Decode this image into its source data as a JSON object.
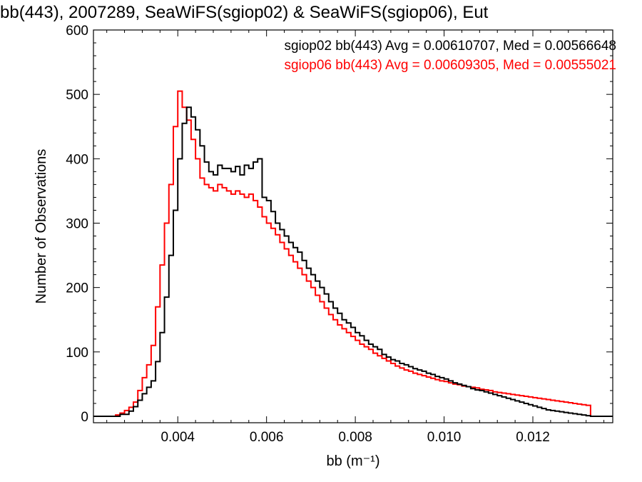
{
  "chart_data": {
    "type": "line",
    "title": "bb(443), 2007289, SeaWiFS(sgiop02) & SeaWiFS(sgiop06), Eut",
    "xlabel": "bb (m⁻¹)",
    "ylabel": "Number of Observations",
    "xlim": [
      0.0021,
      0.0138
    ],
    "ylim": [
      -10,
      600
    ],
    "xticks": [
      0.004,
      0.006,
      0.008,
      0.01,
      0.012
    ],
    "xtick_labels": [
      "0.004",
      "0.006",
      "0.008",
      "0.010",
      "0.012"
    ],
    "yticks": [
      0,
      100,
      200,
      300,
      400,
      500,
      600
    ],
    "ytick_labels": [
      "0",
      "100",
      "200",
      "300",
      "400",
      "500",
      "600"
    ],
    "grid": false,
    "legend_position": "top-right",
    "series": [
      {
        "name": "sgiop02 bb(443) Avg = 0.00610707, Med = 0.00566648",
        "color": "#000000",
        "step": "histogram",
        "points": [
          [
            0.0025,
            0
          ],
          [
            0.0027,
            3
          ],
          [
            0.0029,
            8
          ],
          [
            0.003,
            15
          ],
          [
            0.0031,
            25
          ],
          [
            0.0032,
            35
          ],
          [
            0.0033,
            45
          ],
          [
            0.0034,
            55
          ],
          [
            0.0035,
            85
          ],
          [
            0.0036,
            130
          ],
          [
            0.0037,
            185
          ],
          [
            0.0038,
            250
          ],
          [
            0.0039,
            320
          ],
          [
            0.004,
            400
          ],
          [
            0.0041,
            455
          ],
          [
            0.0042,
            480
          ],
          [
            0.0043,
            465
          ],
          [
            0.0044,
            445
          ],
          [
            0.0045,
            420
          ],
          [
            0.0046,
            395
          ],
          [
            0.0047,
            380
          ],
          [
            0.0048,
            375
          ],
          [
            0.0049,
            390
          ],
          [
            0.005,
            385
          ],
          [
            0.0051,
            385
          ],
          [
            0.0052,
            380
          ],
          [
            0.0053,
            388
          ],
          [
            0.0054,
            375
          ],
          [
            0.0055,
            390
          ],
          [
            0.0056,
            385
          ],
          [
            0.0057,
            395
          ],
          [
            0.0058,
            400
          ],
          [
            0.0059,
            340
          ],
          [
            0.006,
            335
          ],
          [
            0.0061,
            318
          ],
          [
            0.0062,
            300
          ],
          [
            0.0063,
            290
          ],
          [
            0.0064,
            280
          ],
          [
            0.0065,
            270
          ],
          [
            0.0066,
            262
          ],
          [
            0.0067,
            255
          ],
          [
            0.0068,
            242
          ],
          [
            0.0069,
            230
          ],
          [
            0.007,
            220
          ],
          [
            0.0071,
            210
          ],
          [
            0.0072,
            200
          ],
          [
            0.0073,
            190
          ],
          [
            0.0074,
            178
          ],
          [
            0.0075,
            168
          ],
          [
            0.0076,
            160
          ],
          [
            0.0077,
            150
          ],
          [
            0.0078,
            145
          ],
          [
            0.0079,
            138
          ],
          [
            0.008,
            130
          ],
          [
            0.0081,
            125
          ],
          [
            0.0082,
            118
          ],
          [
            0.0083,
            112
          ],
          [
            0.0084,
            108
          ],
          [
            0.0085,
            104
          ],
          [
            0.0086,
            96
          ],
          [
            0.0087,
            92
          ],
          [
            0.0088,
            88
          ],
          [
            0.0089,
            86
          ],
          [
            0.009,
            82
          ],
          [
            0.0091,
            80
          ],
          [
            0.0092,
            77
          ],
          [
            0.0093,
            74
          ],
          [
            0.0094,
            72
          ],
          [
            0.0095,
            70
          ],
          [
            0.0096,
            67
          ],
          [
            0.0097,
            65
          ],
          [
            0.0098,
            62
          ],
          [
            0.0099,
            60
          ],
          [
            0.01,
            58
          ],
          [
            0.0101,
            55
          ],
          [
            0.0102,
            52
          ],
          [
            0.0103,
            50
          ],
          [
            0.0104,
            48
          ],
          [
            0.0105,
            46
          ],
          [
            0.0106,
            43
          ],
          [
            0.0107,
            41
          ],
          [
            0.0108,
            40
          ],
          [
            0.0109,
            38
          ],
          [
            0.011,
            36
          ],
          [
            0.0111,
            34
          ],
          [
            0.0112,
            32
          ],
          [
            0.0113,
            30
          ],
          [
            0.0114,
            28
          ],
          [
            0.0115,
            26
          ],
          [
            0.0116,
            24
          ],
          [
            0.0117,
            22
          ],
          [
            0.0118,
            20
          ],
          [
            0.0119,
            18
          ],
          [
            0.012,
            16
          ],
          [
            0.0121,
            14
          ],
          [
            0.0122,
            12
          ],
          [
            0.0123,
            10
          ],
          [
            0.0124,
            9
          ],
          [
            0.0125,
            8
          ],
          [
            0.0126,
            7
          ],
          [
            0.0127,
            6
          ],
          [
            0.0128,
            5
          ],
          [
            0.0129,
            4
          ],
          [
            0.013,
            3
          ],
          [
            0.0131,
            2
          ],
          [
            0.0132,
            1
          ],
          [
            0.0133,
            0
          ]
        ]
      },
      {
        "name": "sgiop06 bb(443) Avg = 0.00609305, Med = 0.00555021",
        "color": "#ff0000",
        "step": "histogram",
        "points": [
          [
            0.0025,
            0
          ],
          [
            0.0026,
            2
          ],
          [
            0.0027,
            5
          ],
          [
            0.0028,
            9
          ],
          [
            0.0029,
            14
          ],
          [
            0.003,
            22
          ],
          [
            0.0031,
            40
          ],
          [
            0.0032,
            60
          ],
          [
            0.0033,
            80
          ],
          [
            0.0034,
            110
          ],
          [
            0.0035,
            170
          ],
          [
            0.0036,
            235
          ],
          [
            0.0037,
            300
          ],
          [
            0.0038,
            360
          ],
          [
            0.0039,
            450
          ],
          [
            0.004,
            505
          ],
          [
            0.0041,
            480
          ],
          [
            0.0042,
            460
          ],
          [
            0.0043,
            430
          ],
          [
            0.0044,
            400
          ],
          [
            0.0045,
            370
          ],
          [
            0.0046,
            360
          ],
          [
            0.0047,
            355
          ],
          [
            0.0048,
            350
          ],
          [
            0.0049,
            360
          ],
          [
            0.005,
            355
          ],
          [
            0.0051,
            350
          ],
          [
            0.0052,
            345
          ],
          [
            0.0053,
            350
          ],
          [
            0.0054,
            345
          ],
          [
            0.0055,
            340
          ],
          [
            0.0056,
            345
          ],
          [
            0.0057,
            335
          ],
          [
            0.0058,
            325
          ],
          [
            0.0059,
            310
          ],
          [
            0.006,
            300
          ],
          [
            0.0061,
            292
          ],
          [
            0.0062,
            282
          ],
          [
            0.0063,
            270
          ],
          [
            0.0064,
            260
          ],
          [
            0.0065,
            250
          ],
          [
            0.0066,
            240
          ],
          [
            0.0067,
            230
          ],
          [
            0.0068,
            220
          ],
          [
            0.0069,
            210
          ],
          [
            0.007,
            200
          ],
          [
            0.0071,
            188
          ],
          [
            0.0072,
            178
          ],
          [
            0.0073,
            168
          ],
          [
            0.0074,
            158
          ],
          [
            0.0075,
            150
          ],
          [
            0.0076,
            142
          ],
          [
            0.0077,
            136
          ],
          [
            0.0078,
            130
          ],
          [
            0.0079,
            124
          ],
          [
            0.008,
            118
          ],
          [
            0.0081,
            112
          ],
          [
            0.0082,
            108
          ],
          [
            0.0083,
            104
          ],
          [
            0.0084,
            98
          ],
          [
            0.0085,
            94
          ],
          [
            0.0086,
            90
          ],
          [
            0.0087,
            86
          ],
          [
            0.0088,
            82
          ],
          [
            0.0089,
            78
          ],
          [
            0.009,
            75
          ],
          [
            0.0091,
            72
          ],
          [
            0.0092,
            70
          ],
          [
            0.0093,
            67
          ],
          [
            0.0094,
            65
          ],
          [
            0.0095,
            63
          ],
          [
            0.0096,
            61
          ],
          [
            0.0097,
            59
          ],
          [
            0.0098,
            57
          ],
          [
            0.0099,
            55
          ],
          [
            0.01,
            54
          ],
          [
            0.0101,
            52
          ],
          [
            0.0102,
            50
          ],
          [
            0.0103,
            49
          ],
          [
            0.0104,
            47
          ],
          [
            0.0105,
            46
          ],
          [
            0.0106,
            45
          ],
          [
            0.0107,
            44
          ],
          [
            0.0108,
            42
          ],
          [
            0.0109,
            41
          ],
          [
            0.011,
            40
          ],
          [
            0.0111,
            38
          ],
          [
            0.0112,
            37
          ],
          [
            0.0113,
            36
          ],
          [
            0.0114,
            35
          ],
          [
            0.0115,
            34
          ],
          [
            0.0116,
            33
          ],
          [
            0.0117,
            32
          ],
          [
            0.0118,
            31
          ],
          [
            0.0119,
            30
          ],
          [
            0.012,
            29
          ],
          [
            0.0121,
            28
          ],
          [
            0.0122,
            27
          ],
          [
            0.0123,
            26
          ],
          [
            0.0124,
            25
          ],
          [
            0.0125,
            24
          ],
          [
            0.0126,
            23
          ],
          [
            0.0127,
            22
          ],
          [
            0.0128,
            21
          ],
          [
            0.0129,
            20
          ],
          [
            0.013,
            19
          ],
          [
            0.0131,
            18
          ],
          [
            0.0132,
            17
          ],
          [
            0.0133,
            0
          ]
        ]
      }
    ]
  }
}
